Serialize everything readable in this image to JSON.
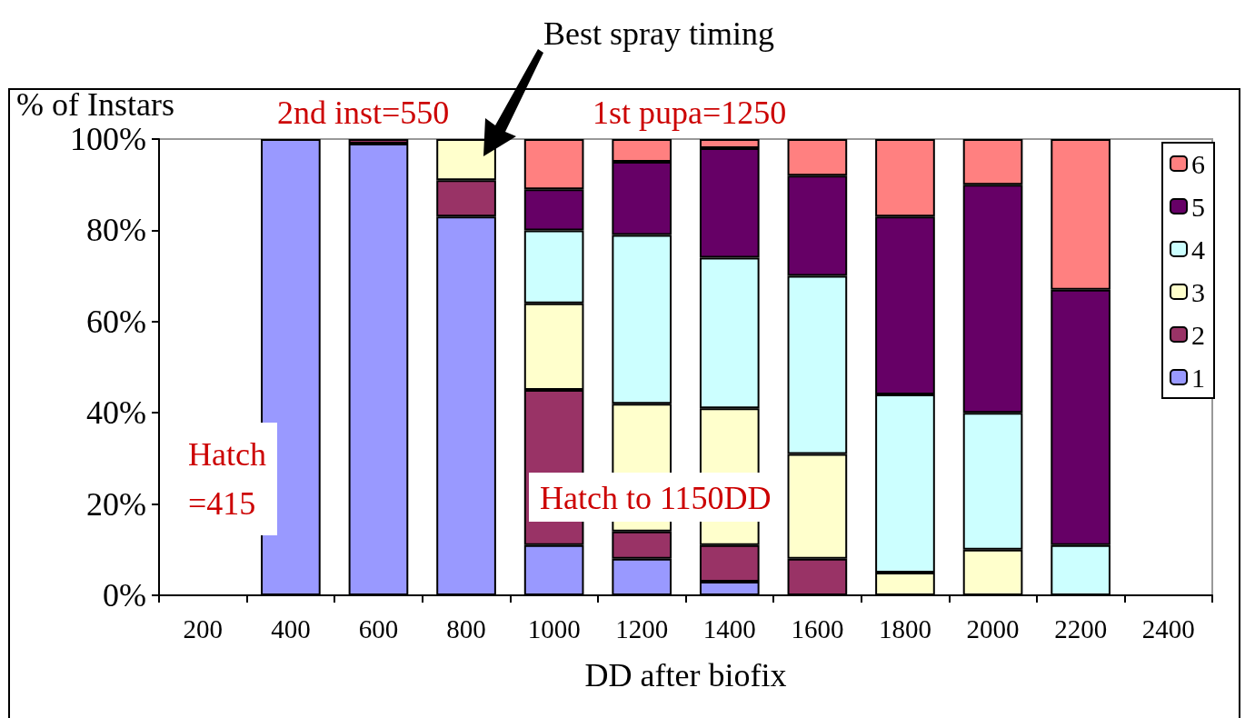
{
  "chart_data": {
    "type": "bar",
    "stacked": true,
    "xlabel": "DD after biofix",
    "ylabel": "% of Instars",
    "categories": [
      "200",
      "400",
      "600",
      "800",
      "1000",
      "1200",
      "1400",
      "1600",
      "1800",
      "2000",
      "2200",
      "2400"
    ],
    "series": [
      {
        "name": "1",
        "color": "#9999ff",
        "values": [
          null,
          100,
          99,
          83,
          11,
          8,
          3,
          null,
          null,
          null,
          null,
          null
        ]
      },
      {
        "name": "2",
        "color": "#993366",
        "values": [
          null,
          null,
          1,
          8,
          34,
          6,
          8,
          8,
          null,
          null,
          null,
          null
        ]
      },
      {
        "name": "3",
        "color": "#ffffcc",
        "values": [
          null,
          null,
          null,
          9,
          19,
          28,
          30,
          23,
          5,
          10,
          null,
          null
        ]
      },
      {
        "name": "4",
        "color": "#ccffff",
        "values": [
          null,
          null,
          null,
          null,
          16,
          37,
          33,
          39,
          39,
          30,
          11,
          null
        ]
      },
      {
        "name": "5",
        "color": "#660066",
        "values": [
          null,
          null,
          null,
          null,
          9,
          16,
          24,
          22,
          39,
          50,
          56,
          null
        ]
      },
      {
        "name": "6",
        "color": "#ff8080",
        "values": [
          null,
          null,
          null,
          null,
          11,
          5,
          2,
          8,
          17,
          10,
          33,
          null
        ]
      }
    ],
    "ylim": [
      0,
      100
    ],
    "yticks": [
      {
        "value": 0,
        "label": "0%"
      },
      {
        "value": 20,
        "label": "20%"
      },
      {
        "value": 40,
        "label": "40%"
      },
      {
        "value": 60,
        "label": "60%"
      },
      {
        "value": 80,
        "label": "80%"
      },
      {
        "value": 100,
        "label": "100%"
      }
    ],
    "grid": false,
    "legend": "top right",
    "annotations": [
      "Best spray timing",
      "2nd inst=550",
      "1st pupa=1250",
      "Hatch\n=415",
      "Hatch to 1150DD"
    ]
  }
}
